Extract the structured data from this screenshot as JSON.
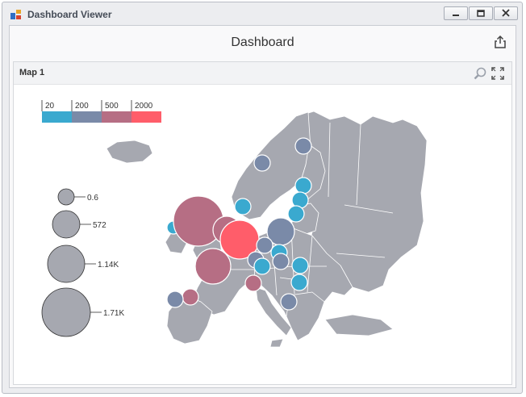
{
  "window": {
    "title": "Dashboard Viewer"
  },
  "dashboard": {
    "title": "Dashboard"
  },
  "map_item": {
    "title": "Map 1"
  },
  "color_legend": {
    "items": [
      {
        "label": "20",
        "color": "#3aa9cf"
      },
      {
        "label": "200",
        "color": "#7a8aa8"
      },
      {
        "label": "500",
        "color": "#b66e84"
      },
      {
        "label": "2000",
        "color": "#ff5d6a"
      }
    ]
  },
  "size_legend": {
    "items": [
      {
        "label": "0.6"
      },
      {
        "label": "572"
      },
      {
        "label": "1.14K"
      },
      {
        "label": "1.71K"
      }
    ]
  },
  "colors": {
    "land": "#a6a8b0",
    "border": "#ffffff",
    "bubble_stroke": "#ffffff"
  },
  "icons": {
    "app": "dashboard-app-icon",
    "minimize": "minimize-icon",
    "maximize": "maximize-icon",
    "close": "close-icon",
    "export": "export-icon",
    "zoom": "zoom-icon",
    "fullscreen": "maximize-item-icon"
  }
}
